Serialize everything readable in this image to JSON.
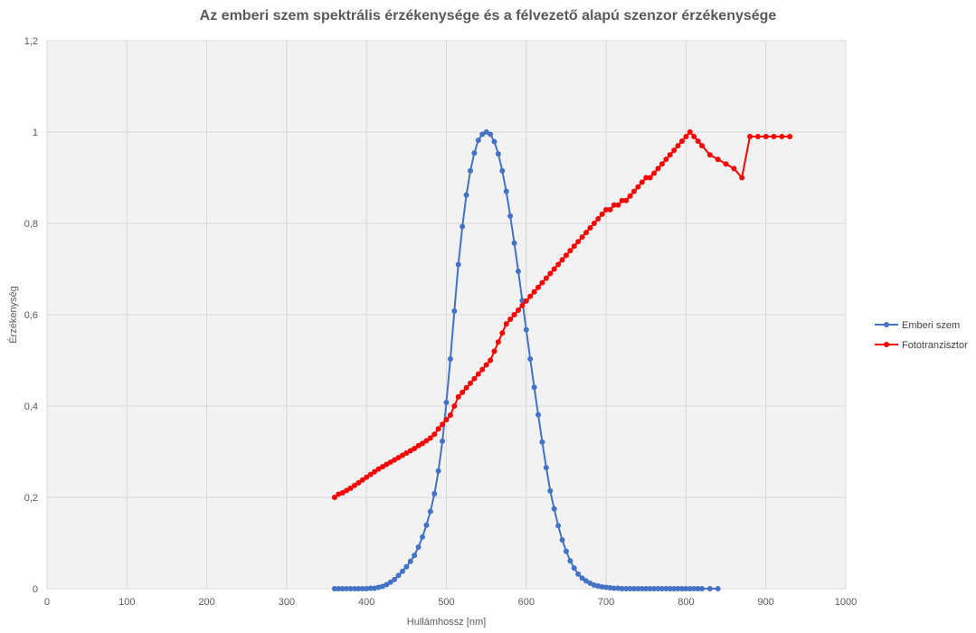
{
  "chart_data": {
    "type": "scatter",
    "title": "Az emberi szem spektrális érzékenysége és a félvezető alapú szenzor érzékenysége",
    "xlabel": "Hullámhossz [nm]",
    "ylabel": "Érzékenység",
    "xlim": [
      0,
      1000
    ],
    "ylim": [
      0,
      1.2
    ],
    "x_ticks": [
      0,
      100,
      200,
      300,
      400,
      500,
      600,
      700,
      800,
      900,
      1000
    ],
    "y_ticks": [
      0,
      0.2,
      0.4,
      0.6,
      0.8,
      1,
      1.2
    ],
    "y_tick_labels": [
      "0",
      "0,2",
      "0,4",
      "0,6",
      "0,8",
      "1",
      "1,2"
    ],
    "grid": true,
    "legend_position": "right",
    "series": [
      {
        "name": "Emberi szem",
        "color": "#4472c4",
        "x": [
          360,
          365,
          370,
          375,
          380,
          385,
          390,
          395,
          400,
          405,
          410,
          415,
          420,
          425,
          430,
          435,
          440,
          445,
          450,
          455,
          460,
          465,
          470,
          475,
          480,
          485,
          490,
          495,
          500,
          505,
          510,
          515,
          520,
          525,
          530,
          535,
          540,
          545,
          550,
          555,
          560,
          565,
          570,
          575,
          580,
          585,
          590,
          595,
          600,
          605,
          610,
          615,
          620,
          625,
          630,
          635,
          640,
          645,
          650,
          655,
          660,
          665,
          670,
          675,
          680,
          685,
          690,
          695,
          700,
          705,
          710,
          715,
          720,
          725,
          730,
          735,
          740,
          745,
          750,
          755,
          760,
          765,
          770,
          775,
          780,
          785,
          790,
          795,
          800,
          805,
          810,
          815,
          820,
          830,
          840
        ],
        "y": [
          0,
          0,
          0,
          0,
          0,
          0,
          0,
          0,
          0,
          0.001,
          0.001,
          0.003,
          0.005,
          0.009,
          0.014,
          0.02,
          0.029,
          0.038,
          0.048,
          0.06,
          0.073,
          0.091,
          0.113,
          0.139,
          0.169,
          0.208,
          0.258,
          0.323,
          0.408,
          0.503,
          0.608,
          0.71,
          0.793,
          0.862,
          0.915,
          0.954,
          0.982,
          0.995,
          1,
          0.995,
          0.979,
          0.952,
          0.915,
          0.87,
          0.816,
          0.757,
          0.695,
          0.631,
          0.567,
          0.503,
          0.441,
          0.381,
          0.321,
          0.265,
          0.214,
          0.175,
          0.138,
          0.107,
          0.082,
          0.061,
          0.045,
          0.032,
          0.023,
          0.017,
          0.012,
          0.008,
          0.006,
          0.004,
          0.003,
          0.002,
          0.001,
          0.001,
          0,
          0,
          0,
          0,
          0,
          0,
          0,
          0,
          0,
          0,
          0,
          0,
          0,
          0,
          0,
          0,
          0,
          0,
          0,
          0,
          0,
          0,
          0
        ]
      },
      {
        "name": "Fototranzisztor",
        "color": "#ff0000",
        "x": [
          360,
          365,
          370,
          375,
          380,
          385,
          390,
          395,
          400,
          405,
          410,
          415,
          420,
          425,
          430,
          435,
          440,
          445,
          450,
          455,
          460,
          465,
          470,
          475,
          480,
          485,
          490,
          495,
          500,
          505,
          510,
          515,
          520,
          525,
          530,
          535,
          540,
          545,
          550,
          555,
          560,
          565,
          570,
          575,
          580,
          585,
          590,
          595,
          600,
          605,
          610,
          615,
          620,
          625,
          630,
          635,
          640,
          645,
          650,
          655,
          660,
          665,
          670,
          675,
          680,
          685,
          690,
          695,
          700,
          705,
          710,
          715,
          720,
          725,
          730,
          735,
          740,
          745,
          750,
          755,
          760,
          765,
          770,
          775,
          780,
          785,
          790,
          795,
          800,
          805,
          810,
          815,
          820,
          830,
          840,
          850,
          860,
          870,
          880,
          890,
          900,
          910,
          920,
          930
        ],
        "y": [
          0.2,
          0.207,
          0.21,
          0.215,
          0.22,
          0.226,
          0.232,
          0.238,
          0.244,
          0.25,
          0.256,
          0.262,
          0.267,
          0.272,
          0.277,
          0.282,
          0.287,
          0.292,
          0.297,
          0.302,
          0.307,
          0.313,
          0.318,
          0.324,
          0.33,
          0.338,
          0.35,
          0.36,
          0.37,
          0.38,
          0.4,
          0.42,
          0.43,
          0.44,
          0.45,
          0.46,
          0.47,
          0.48,
          0.49,
          0.5,
          0.52,
          0.54,
          0.56,
          0.58,
          0.59,
          0.6,
          0.61,
          0.62,
          0.63,
          0.64,
          0.65,
          0.66,
          0.67,
          0.68,
          0.69,
          0.7,
          0.71,
          0.72,
          0.73,
          0.74,
          0.75,
          0.76,
          0.77,
          0.78,
          0.79,
          0.8,
          0.81,
          0.82,
          0.83,
          0.83,
          0.84,
          0.84,
          0.85,
          0.85,
          0.86,
          0.87,
          0.88,
          0.89,
          0.9,
          0.9,
          0.91,
          0.92,
          0.93,
          0.94,
          0.95,
          0.96,
          0.97,
          0.98,
          0.99,
          1,
          0.99,
          0.98,
          0.97,
          0.95,
          0.94,
          0.93,
          0.92,
          0.9,
          0.99,
          0.99,
          0.99,
          0.99,
          0.99,
          0.99
        ]
      }
    ]
  }
}
